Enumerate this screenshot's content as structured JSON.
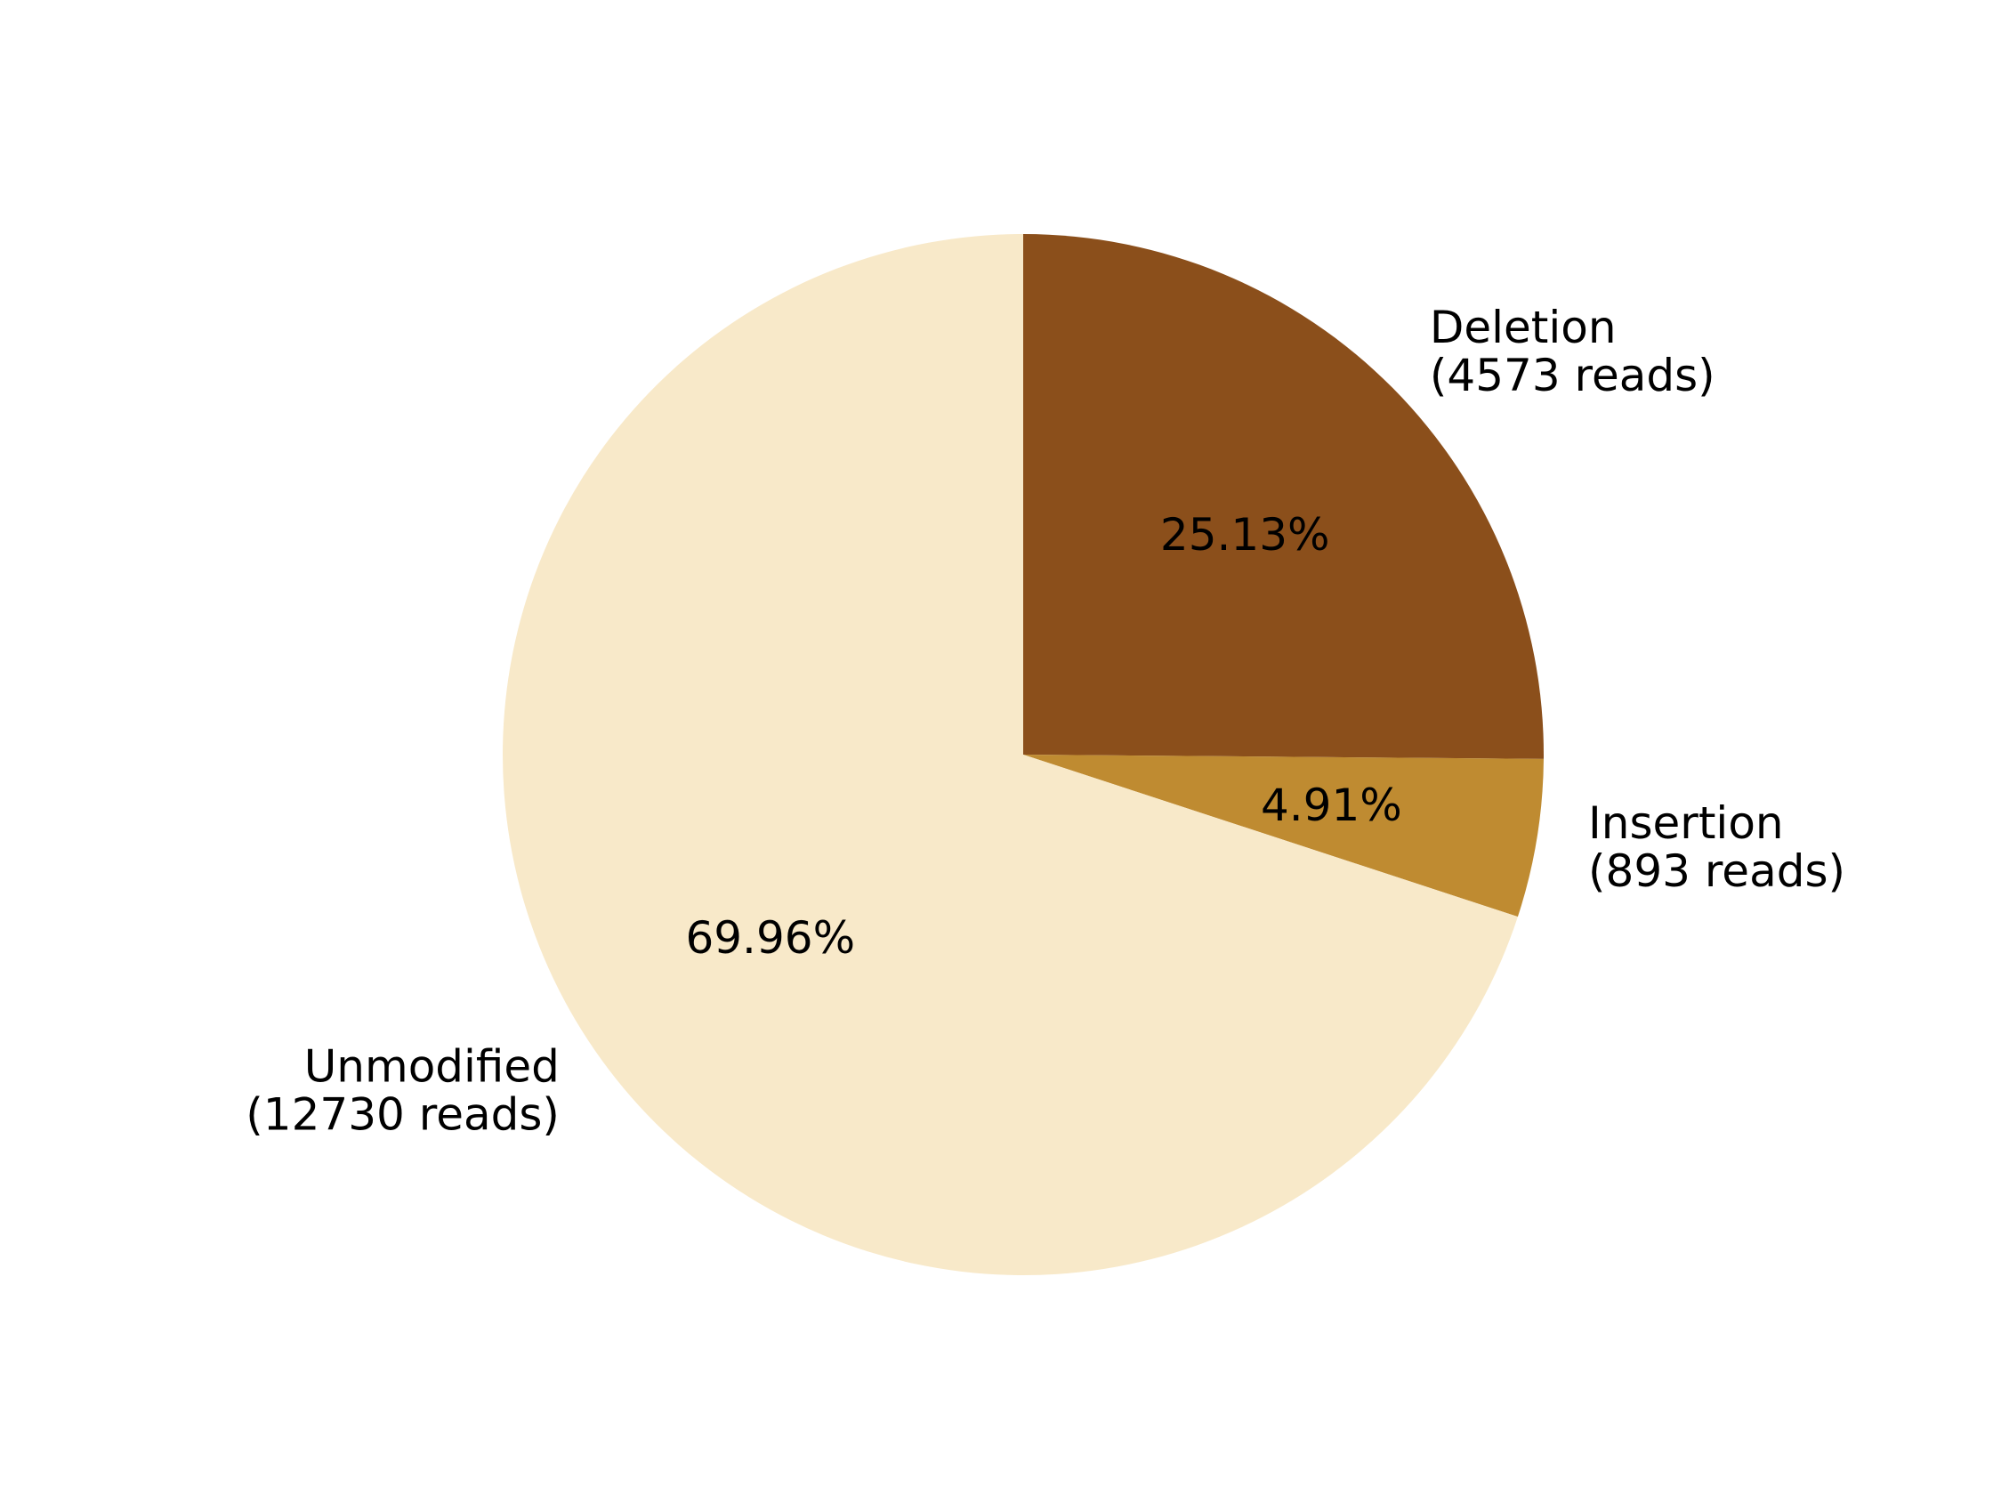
{
  "chart_data": {
    "type": "pie",
    "start_angle_deg": 90,
    "direction": "clockwise",
    "slices": [
      {
        "label_line1": "Deletion",
        "label_line2": "(4573 reads)",
        "reads": 4573,
        "pct_label": "25.13%",
        "color": "#8b4f1b"
      },
      {
        "label_line1": "Insertion",
        "label_line2": "(893 reads)",
        "reads": 893,
        "pct_label": "4.91%",
        "color": "#bf8b31"
      },
      {
        "label_line1": "Unmodified",
        "label_line2": "(12730 reads)",
        "reads": 12730,
        "pct_label": "69.96%",
        "color": "#f8e9c9"
      }
    ]
  }
}
